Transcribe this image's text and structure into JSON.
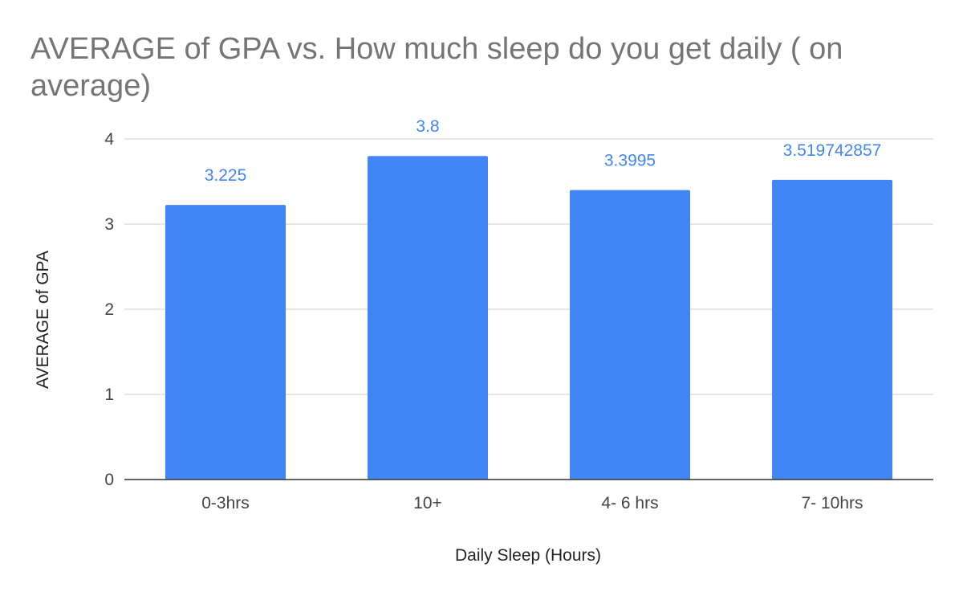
{
  "chart_data": {
    "type": "bar",
    "title": "AVERAGE of GPA vs. How much sleep do you get daily ( on average)",
    "xlabel": "Daily Sleep (Hours)",
    "ylabel": "AVERAGE of GPA",
    "categories": [
      "0-3hrs",
      "10+",
      "4- 6 hrs",
      "7- 10hrs"
    ],
    "values": [
      3.225,
      3.8,
      3.3995,
      3.519742857
    ],
    "data_labels": [
      "3.225",
      "3.8",
      "3.3995",
      "3.519742857"
    ],
    "ylim": [
      0,
      4
    ],
    "yticks": [
      0,
      1,
      2,
      3,
      4
    ],
    "grid": true,
    "colors": {
      "bar": "#4285f4",
      "data_label": "#4285f4",
      "title": "#757575",
      "grid": "#cccccc",
      "baseline": "#333333"
    }
  }
}
